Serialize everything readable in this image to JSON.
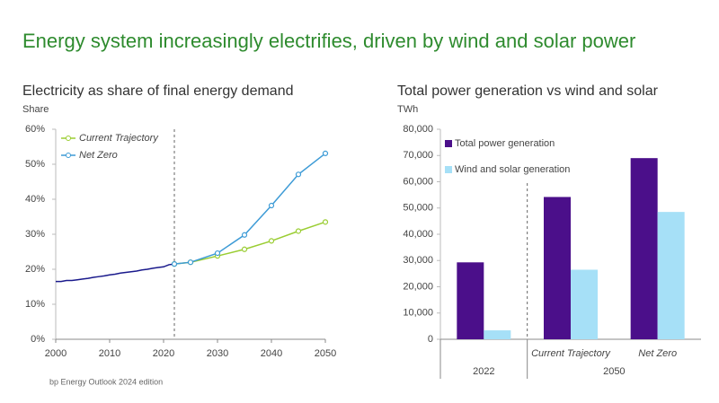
{
  "title": "Energy system increasingly electrifies, driven by wind and solar power",
  "source": "bp Energy Outlook 2024 edition",
  "chart_data": [
    {
      "type": "line",
      "title": "Electricity as share of final energy demand",
      "y_label": "Share",
      "x": [
        2000,
        2001,
        2002,
        2003,
        2004,
        2005,
        2006,
        2007,
        2008,
        2009,
        2010,
        2011,
        2012,
        2013,
        2014,
        2015,
        2016,
        2017,
        2018,
        2019,
        2020,
        2021,
        2022,
        2025,
        2030,
        2035,
        2040,
        2045,
        2050
      ],
      "series": [
        {
          "color": "#1a1a8c",
          "markers": false,
          "values": [
            16.5,
            16.5,
            16.8,
            16.8,
            17.0,
            17.2,
            17.4,
            17.7,
            17.9,
            18.1,
            18.4,
            18.6,
            18.9,
            19.1,
            19.3,
            19.5,
            19.8,
            20.0,
            20.3,
            20.5,
            20.7,
            21.3,
            21.5,
            null,
            null,
            null,
            null,
            null,
            null
          ]
        },
        {
          "name": "Current Trajectory",
          "color": "#9acd32",
          "markers": true,
          "values": [
            null,
            null,
            null,
            null,
            null,
            null,
            null,
            null,
            null,
            null,
            null,
            null,
            null,
            null,
            null,
            null,
            null,
            null,
            null,
            null,
            null,
            null,
            21.5,
            22.0,
            23.8,
            25.7,
            28.1,
            30.9,
            33.5
          ]
        },
        {
          "name": "Net Zero",
          "color": "#3d9bd6",
          "markers": true,
          "values": [
            null,
            null,
            null,
            null,
            null,
            null,
            null,
            null,
            null,
            null,
            null,
            null,
            null,
            null,
            null,
            null,
            null,
            null,
            null,
            null,
            null,
            null,
            21.5,
            22.0,
            24.6,
            29.8,
            38.2,
            47.1,
            53.1
          ]
        }
      ],
      "xlim": [
        2000,
        2050
      ],
      "xticks": [
        2000,
        2010,
        2020,
        2030,
        2040,
        2050
      ],
      "ylim": [
        0,
        60
      ],
      "yticks": [
        {
          "value": 0,
          "label": "0%"
        },
        {
          "value": 10,
          "label": "10%"
        },
        {
          "value": 20,
          "label": "20%"
        },
        {
          "value": 30,
          "label": "30%"
        },
        {
          "value": 40,
          "label": "40%"
        },
        {
          "value": 50,
          "label": "50%"
        },
        {
          "value": 60,
          "label": "60%"
        }
      ],
      "vline": 2022,
      "grid": false,
      "legend": "top-left"
    },
    {
      "type": "bar",
      "title": "Total power generation vs wind and solar",
      "y_label": "TWh",
      "categories": [
        null,
        "Current Trajectory",
        "Net Zero"
      ],
      "groups": [
        {
          "label": "2022",
          "categories": 1
        },
        {
          "label": "2050",
          "categories": 2
        }
      ],
      "series": [
        {
          "name": "Total power generation",
          "color": "#4b0f8a",
          "values": [
            29300,
            54200,
            69000
          ]
        },
        {
          "name": "Wind and solar generation",
          "color": "#a6e0f7",
          "values": [
            3400,
            26500,
            48500
          ]
        }
      ],
      "ylim": [
        0,
        80000
      ],
      "yticks": [
        0,
        {
          "value": 10000,
          "label": "10,000"
        },
        {
          "value": 20000,
          "label": "20,000"
        },
        {
          "value": 30000,
          "label": "30,000"
        },
        {
          "value": 40000,
          "label": "40,000"
        },
        {
          "value": 50000,
          "label": "50,000"
        },
        {
          "value": 60000,
          "label": "60,000"
        },
        {
          "value": 70000,
          "label": "70,000"
        },
        {
          "value": 80000,
          "label": "80,000"
        }
      ],
      "grid": false,
      "legend": "top-left"
    }
  ]
}
